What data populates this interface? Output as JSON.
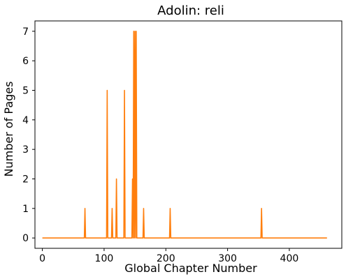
{
  "chart_data": {
    "type": "line",
    "title": "Adolin: reli",
    "xlabel": "Global Chapter Number",
    "ylabel": "Number of Pages",
    "xlim": [
      -12,
      485
    ],
    "ylim": [
      -0.35,
      7.35
    ],
    "xticks": [
      0,
      100,
      200,
      300,
      400
    ],
    "yticks": [
      0,
      1,
      2,
      3,
      4,
      5,
      6,
      7
    ],
    "grid": false,
    "series": [
      {
        "color": "#ff7f0e",
        "x": [
          0,
          68,
          69,
          70,
          104,
          105,
          106,
          112,
          113,
          114,
          119,
          120,
          121,
          132,
          133,
          134,
          145,
          146,
          147,
          148,
          149,
          150,
          151,
          152,
          153,
          163,
          164,
          165,
          206,
          207,
          208,
          354,
          355,
          356,
          461
        ],
        "y": [
          0,
          0,
          1,
          0,
          0,
          5,
          0,
          0,
          1,
          0,
          0,
          2,
          0,
          0,
          5,
          0,
          0,
          2,
          0,
          7,
          0,
          7,
          0,
          7,
          0,
          0,
          1,
          0,
          0,
          1,
          0,
          0,
          1,
          0,
          0
        ]
      }
    ]
  }
}
